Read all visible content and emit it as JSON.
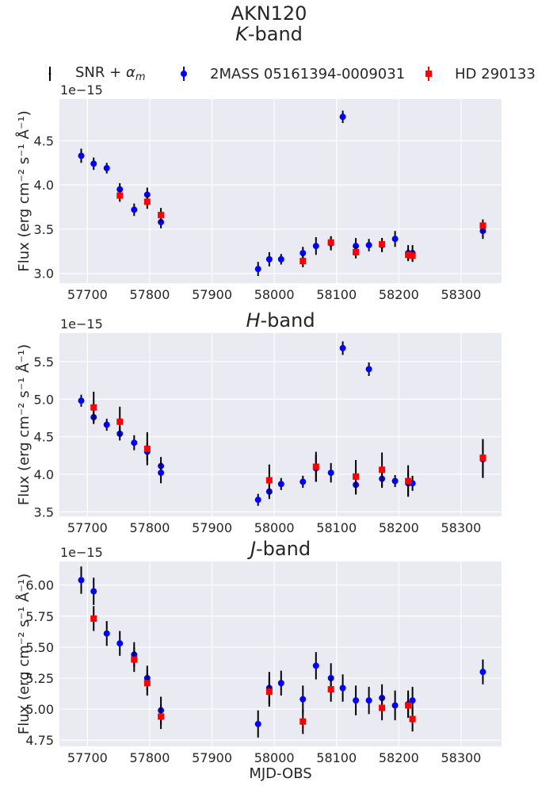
{
  "figure": {
    "suptitle_line1": "AKN120",
    "suptitle_band_letter": "K",
    "suptitle_band_suffix": "-band",
    "colors": {
      "bg": "#eaeaf2",
      "grid": "#ffffff",
      "errorbar": "#000000",
      "series_2mass": "#0000ff",
      "series_hd": "#ff0000"
    }
  },
  "legend": {
    "items": [
      {
        "label_main": "SNR + ",
        "label_sym": "α",
        "label_sub": "m",
        "marker": "errorbar-only"
      },
      {
        "label_main": "2MASS 05161394-0009031",
        "marker": "blue-circle"
      },
      {
        "label_main": "HD 290133",
        "marker": "red-square"
      }
    ]
  },
  "chart_data": [
    {
      "type": "scatter",
      "band": "K",
      "title_letter": "",
      "title_suffix": "",
      "xlabel": "",
      "ylabel": "Flux (erg cm⁻² s⁻¹ Å⁻¹)",
      "offset_text": "1e−15",
      "xlim": [
        57655,
        58365
      ],
      "ylim": [
        2.89,
        4.97
      ],
      "xticks": [
        57700,
        57800,
        57900,
        58000,
        58100,
        58200,
        58300
      ],
      "yticks": [
        3.0,
        3.5,
        4.0,
        4.5
      ],
      "ytick_labels": [
        "3.0",
        "3.5",
        "4.0",
        "4.5"
      ],
      "grid": true,
      "series": [
        {
          "name": "2MASS 05161394-0009031",
          "marker": "circle",
          "color": "#0000ff",
          "x": [
            57690,
            57710,
            57731,
            57752,
            57775,
            57796,
            57818,
            57974,
            57992,
            58011,
            58046,
            58067,
            58091,
            58110,
            58131,
            58152,
            58173,
            58194,
            58215,
            58222,
            58335
          ],
          "y": [
            4.33,
            4.24,
            4.19,
            3.95,
            3.72,
            3.89,
            3.58,
            3.05,
            3.16,
            3.16,
            3.23,
            3.31,
            3.34,
            4.77,
            3.31,
            3.32,
            3.32,
            3.39,
            3.23,
            3.23,
            3.48
          ],
          "yerr": [
            0.08,
            0.07,
            0.06,
            0.07,
            0.07,
            0.08,
            0.07,
            0.08,
            0.08,
            0.06,
            0.07,
            0.1,
            0.08,
            0.07,
            0.09,
            0.07,
            0.08,
            0.09,
            0.09,
            0.09,
            0.09
          ]
        },
        {
          "name": "HD 290133",
          "marker": "square",
          "color": "#ff0000",
          "x": [
            57752,
            57796,
            57818,
            58046,
            58091,
            58131,
            58173,
            58215,
            58222,
            58335
          ],
          "y": [
            3.88,
            3.81,
            3.66,
            3.14,
            3.35,
            3.24,
            3.33,
            3.21,
            3.2,
            3.54
          ],
          "yerr": [
            0.07,
            0.08,
            0.08,
            0.07,
            0.07,
            0.07,
            0.07,
            0.07,
            0.07,
            0.07
          ]
        }
      ]
    },
    {
      "type": "scatter",
      "band": "H",
      "title_letter": "H",
      "title_suffix": "-band",
      "xlabel": "",
      "ylabel": "Flux (erg cm⁻² s⁻¹ Å⁻¹)",
      "offset_text": "1e−15",
      "xlim": [
        57655,
        58365
      ],
      "ylim": [
        3.44,
        5.88
      ],
      "xticks": [
        57700,
        57800,
        57900,
        58000,
        58100,
        58200,
        58300
      ],
      "yticks": [
        3.5,
        4.0,
        4.5,
        5.0,
        5.5
      ],
      "ytick_labels": [
        "3.5",
        "4.0",
        "4.5",
        "5.0",
        "5.5"
      ],
      "grid": true,
      "series": [
        {
          "name": "2MASS 05161394-0009031",
          "marker": "circle",
          "color": "#0000ff",
          "x": [
            57690,
            57710,
            57731,
            57752,
            57775,
            57796,
            57818,
            57818,
            57974,
            57992,
            58011,
            58046,
            58067,
            58091,
            58110,
            58131,
            58152,
            58173,
            58194,
            58215,
            58222,
            58335
          ],
          "y": [
            4.98,
            4.76,
            4.66,
            4.54,
            4.42,
            4.3,
            4.11,
            4.02,
            3.66,
            3.77,
            3.87,
            3.9,
            4.08,
            4.02,
            5.68,
            3.86,
            5.4,
            3.94,
            3.91,
            3.88,
            3.88,
            4.2
          ],
          "yerr": [
            0.08,
            0.09,
            0.08,
            0.09,
            0.1,
            0.12,
            0.12,
            0.14,
            0.08,
            0.1,
            0.08,
            0.08,
            0.18,
            0.13,
            0.09,
            0.13,
            0.09,
            0.12,
            0.08,
            0.17,
            0.1,
            0.25
          ]
        },
        {
          "name": "HD 290133",
          "marker": "square",
          "color": "#ff0000",
          "x": [
            57710,
            57752,
            57796,
            57992,
            58067,
            58131,
            58173,
            58215,
            58335
          ],
          "y": [
            4.89,
            4.7,
            4.34,
            3.92,
            4.1,
            3.97,
            4.06,
            3.91,
            4.22
          ],
          "yerr": [
            0.21,
            0.2,
            0.22,
            0.21,
            0.2,
            0.22,
            0.23,
            0.21,
            0.25
          ]
        }
      ]
    },
    {
      "type": "scatter",
      "band": "J",
      "title_letter": "J",
      "title_suffix": "-band",
      "xlabel": "MJD-OBS",
      "ylabel": "Flux (erg cm⁻² s⁻¹ Å⁻¹)",
      "offset_text": "1e−15",
      "xlim": [
        57655,
        58365
      ],
      "ylim": [
        4.7,
        6.19
      ],
      "xticks": [
        57700,
        57800,
        57900,
        58000,
        58100,
        58200,
        58300
      ],
      "yticks": [
        4.75,
        5.0,
        5.25,
        5.5,
        5.75,
        6.0
      ],
      "ytick_labels": [
        "4.75",
        "5.00",
        "5.25",
        "5.50",
        "5.75",
        "6.00"
      ],
      "grid": true,
      "series": [
        {
          "name": "2MASS 05161394-0009031",
          "marker": "circle",
          "color": "#0000ff",
          "x": [
            57690,
            57710,
            57731,
            57752,
            57775,
            57796,
            57818,
            57974,
            57992,
            58011,
            58046,
            58067,
            58091,
            58110,
            58131,
            58152,
            58173,
            58194,
            58215,
            58222,
            58335
          ],
          "y": [
            6.04,
            5.95,
            5.61,
            5.53,
            5.44,
            5.25,
            4.99,
            4.88,
            5.17,
            5.21,
            5.08,
            5.35,
            5.25,
            5.17,
            5.07,
            5.07,
            5.09,
            5.03,
            5.04,
            5.07,
            5.3
          ],
          "yerr": [
            0.11,
            0.11,
            0.1,
            0.1,
            0.1,
            0.1,
            0.11,
            0.11,
            0.13,
            0.1,
            0.11,
            0.11,
            0.12,
            0.11,
            0.12,
            0.11,
            0.11,
            0.12,
            0.11,
            0.11,
            0.1
          ]
        },
        {
          "name": "HD 290133",
          "marker": "square",
          "color": "#ff0000",
          "x": [
            57710,
            57775,
            57796,
            57818,
            57992,
            58046,
            58091,
            58173,
            58215,
            58222
          ],
          "y": [
            5.73,
            5.4,
            5.21,
            4.94,
            5.14,
            4.9,
            5.16,
            5.01,
            5.03,
            4.92
          ],
          "yerr": [
            0.1,
            0.1,
            0.1,
            0.1,
            0.12,
            0.1,
            0.1,
            0.1,
            0.1,
            0.1
          ]
        }
      ]
    }
  ]
}
